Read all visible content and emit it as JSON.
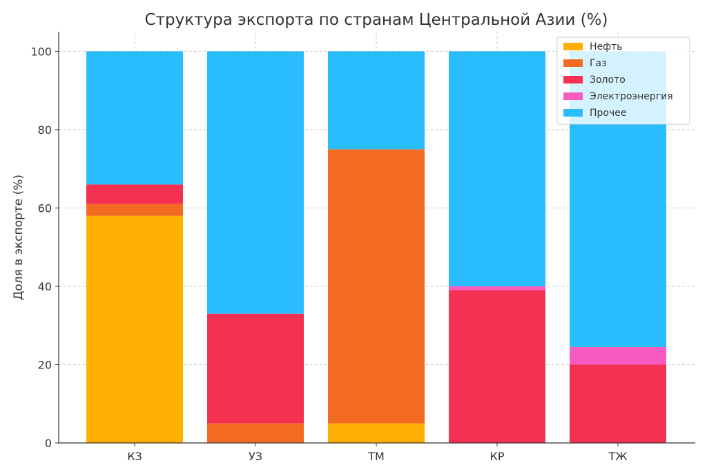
{
  "chart_data": {
    "type": "bar",
    "stacked": true,
    "title": "Структура экспорта по странам Центральной Азии (%)",
    "xlabel": "",
    "ylabel": "Доля в экспорте (%)",
    "ylim": [
      0,
      105
    ],
    "yticks": [
      0,
      20,
      40,
      60,
      80,
      100
    ],
    "grid": true,
    "legend_position": "top-right",
    "categories": [
      "КЗ",
      "УЗ",
      "ТМ",
      "КР",
      "ТЖ"
    ],
    "series": [
      {
        "name": "Нефть",
        "color": "#FFB000",
        "values": [
          58,
          0,
          5,
          0,
          0
        ]
      },
      {
        "name": "Газ",
        "color": "#F26B21",
        "values": [
          3,
          5,
          70,
          0,
          0
        ]
      },
      {
        "name": "Золото",
        "color": "#F53152",
        "values": [
          5,
          28,
          0,
          39,
          20
        ]
      },
      {
        "name": "Электроэнергия",
        "color": "#F75BBF",
        "values": [
          0,
          0,
          0,
          1,
          4.5
        ]
      },
      {
        "name": "Прочее",
        "color": "#29BDFD",
        "values": [
          34,
          67,
          25,
          60,
          75.5
        ]
      }
    ]
  }
}
